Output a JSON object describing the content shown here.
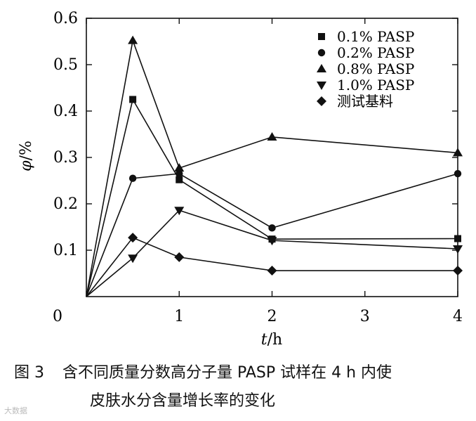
{
  "chart_data": {
    "type": "line",
    "x": [
      0,
      0.5,
      1,
      2,
      4
    ],
    "xticks": [
      0,
      1,
      2,
      3,
      4
    ],
    "yticks": [
      0.1,
      0.2,
      0.3,
      0.4,
      0.5,
      0.6
    ],
    "xlim": [
      0,
      4
    ],
    "ylim": [
      0,
      0.6
    ],
    "xlabel_italic": "t",
    "xlabel_unit": "/h",
    "ylabel_italic": "φ",
    "ylabel_unit": "/%",
    "origin_label": "0",
    "grid": false,
    "legend_position": "top-right",
    "series": [
      {
        "name": "0.1% PASP",
        "marker": "square",
        "values": [
          0,
          0.425,
          0.252,
          0.124,
          0.125
        ]
      },
      {
        "name": "0.2% PASP",
        "marker": "circle",
        "values": [
          0,
          0.255,
          0.265,
          0.148,
          0.265
        ]
      },
      {
        "name": "0.8% PASP",
        "marker": "triangle-up",
        "values": [
          0,
          0.552,
          0.277,
          0.344,
          0.31
        ]
      },
      {
        "name": "1.0% PASP",
        "marker": "triangle-down",
        "values": [
          0,
          0.083,
          0.186,
          0.121,
          0.103
        ]
      },
      {
        "name": "测试基料",
        "marker": "diamond",
        "values": [
          0,
          0.127,
          0.085,
          0.056,
          0.056
        ]
      }
    ]
  },
  "caption": {
    "figure_number": "图 3",
    "line1": "含不同质量分数高分子量 PASP 试样在 4 h 内使",
    "line2": "皮肤水分含量增长率的变化"
  },
  "watermark": "大数据"
}
